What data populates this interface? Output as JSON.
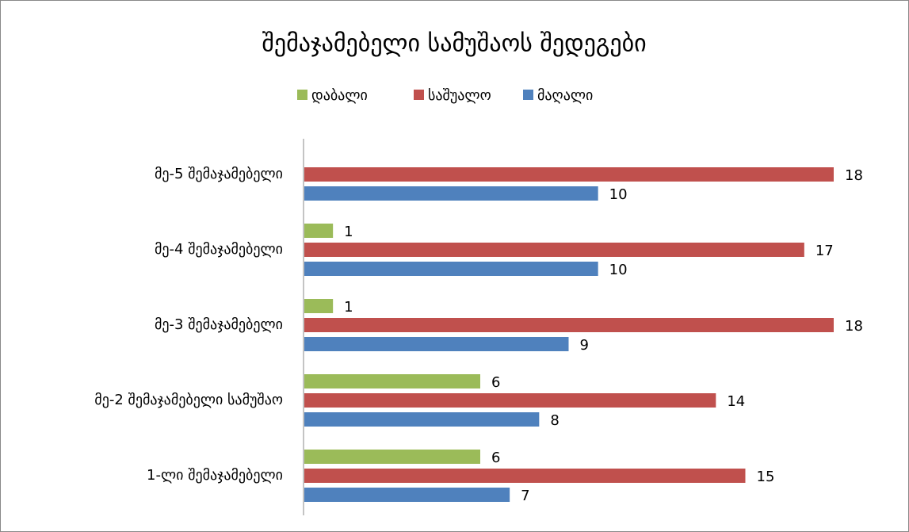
{
  "chart_data": {
    "type": "bar",
    "orientation": "horizontal",
    "title": "შემაჯამებელი სამუშაოს შედეგები",
    "categories": [
      "1-ლი შემაჯამებელი",
      "მე-2 შემაჯამებელი სამუშაო",
      "მე-3 შემაჯამებელი",
      "მე-4 შემაჯამებელი",
      "მე-5 შემაჯამებელი"
    ],
    "series": [
      {
        "name": "დაბალი",
        "color": "#9bbb59",
        "values": [
          6,
          6,
          1,
          1,
          null
        ]
      },
      {
        "name": "საშუალო",
        "color": "#c0504d",
        "values": [
          15,
          14,
          18,
          17,
          18
        ]
      },
      {
        "name": "მაღალი",
        "color": "#4f81bd",
        "values": [
          7,
          8,
          9,
          10,
          10
        ]
      }
    ],
    "legend": "top"
  }
}
